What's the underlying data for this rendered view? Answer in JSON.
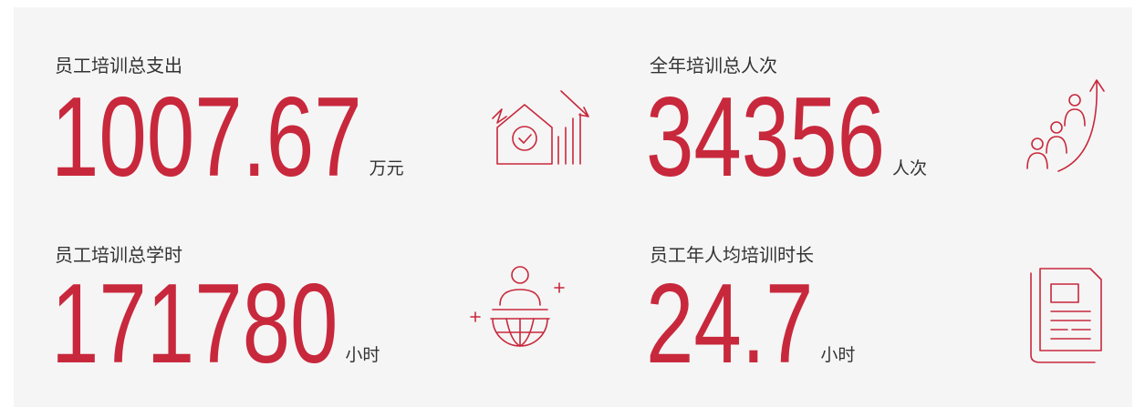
{
  "items": [
    {
      "label": "员工培训总支出",
      "value": 1007.67,
      "unit": "万元"
    },
    {
      "label": "全年培训总人次",
      "value": 34356,
      "unit": "人次"
    },
    {
      "label": "员工培训总学时",
      "value": 171780,
      "unit": "小时"
    },
    {
      "label": "员工年人均培训时长",
      "value": 24.7,
      "unit": "小时"
    }
  ]
}
